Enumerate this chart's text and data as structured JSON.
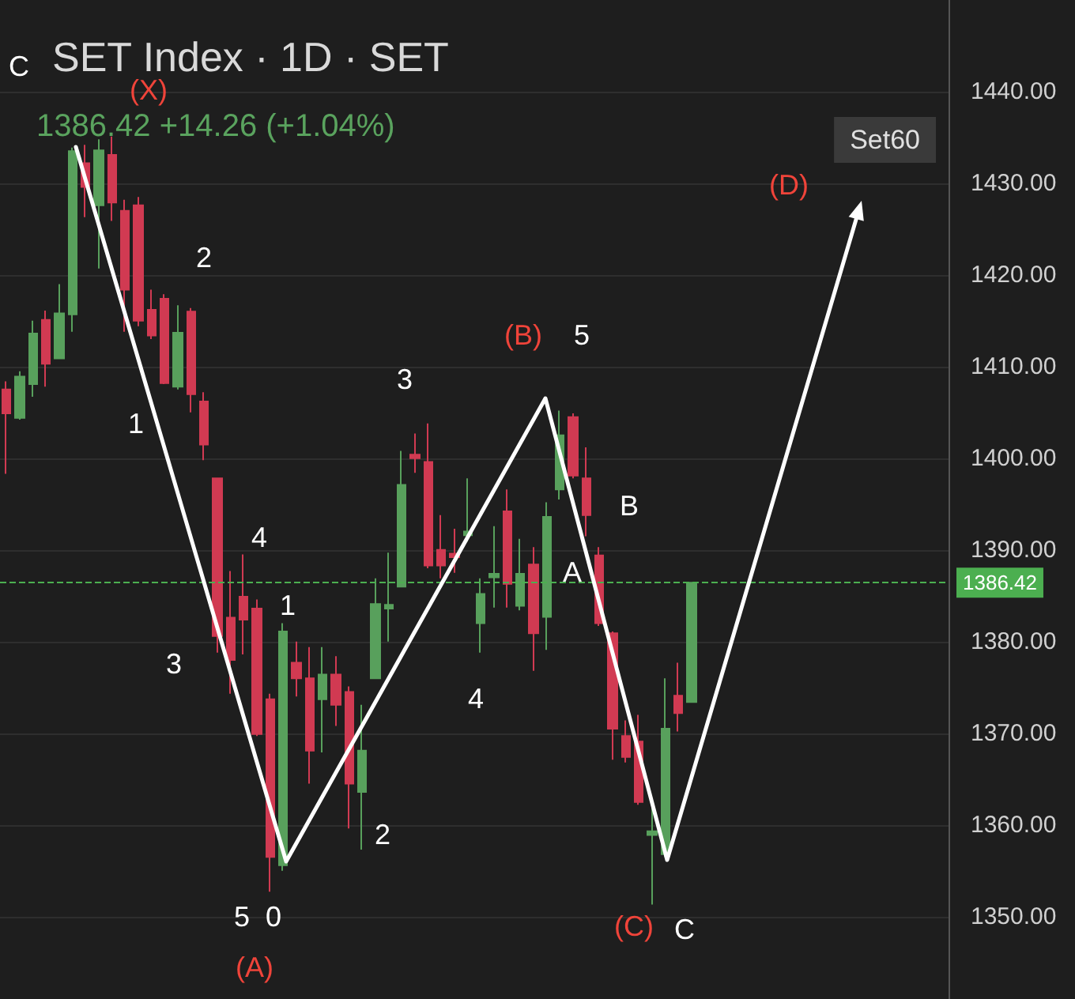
{
  "chart_data": {
    "type": "candlestick",
    "title": "SET Index · 1D · SET",
    "subtitle": "1386.42 +14.26 (+1.04%)",
    "categories": [
      null,
      null,
      null,
      null,
      null,
      null,
      null,
      null,
      null,
      null,
      null,
      null,
      null,
      null,
      null,
      null,
      null,
      null,
      null,
      null,
      null,
      null,
      null,
      null,
      null,
      null,
      null,
      null,
      null,
      null,
      null,
      null,
      null,
      null,
      null,
      null,
      null,
      null,
      null,
      null,
      null,
      null,
      null,
      null,
      null,
      null,
      null,
      null,
      null,
      null,
      null,
      null,
      null,
      null,
      null,
      null,
      null,
      null,
      null,
      null,
      null,
      null,
      null,
      null,
      null,
      null,
      null,
      null,
      null,
      null,
      null,
      null
    ],
    "ohlc": [
      [
        1407.5,
        1408.4,
        1398.3,
        1404.9
      ],
      [
        1404.4,
        1409.5,
        1404.2,
        1408.9
      ],
      [
        1408.1,
        1415.0,
        1406.7,
        1413.6
      ],
      [
        1415.1,
        1416.1,
        1407.8,
        1410.3
      ],
      [
        1410.9,
        1419.0,
        1410.9,
        1415.8
      ],
      [
        1415.7,
        1433.9,
        1413.8,
        1433.5
      ],
      [
        1432.2,
        1434.2,
        1426.3,
        1429.6
      ],
      [
        1427.6,
        1434.8,
        1420.7,
        1433.6
      ],
      [
        1433.1,
        1435.1,
        1425.9,
        1427.9
      ],
      [
        1427.0,
        1428.2,
        1413.8,
        1418.4
      ],
      [
        1427.6,
        1428.5,
        1414.4,
        1415.0
      ],
      [
        1416.2,
        1418.4,
        1413.0,
        1413.4
      ],
      [
        1417.4,
        1417.9,
        1408.1,
        1408.2
      ],
      [
        1407.8,
        1416.7,
        1407.5,
        1413.7
      ],
      [
        1416.0,
        1416.4,
        1405.0,
        1407.0
      ],
      [
        1406.2,
        1407.2,
        1399.8,
        1401.5
      ],
      [
        1397.8,
        1397.8,
        1378.8,
        1380.6
      ],
      [
        1382.6,
        1387.7,
        1374.3,
        1378.0
      ],
      [
        1384.9,
        1389.5,
        1378.6,
        1382.4
      ],
      [
        1383.6,
        1384.6,
        1369.7,
        1369.9
      ],
      [
        1373.7,
        1374.3,
        1352.7,
        1356.5
      ],
      [
        1355.6,
        1382.0,
        1355.0,
        1381.1
      ],
      [
        1377.7,
        1380.0,
        1374.0,
        1376.0
      ],
      [
        1376.0,
        1379.4,
        1364.5,
        1368.1
      ],
      [
        1373.7,
        1379.4,
        1367.9,
        1376.4
      ],
      [
        1376.4,
        1378.4,
        1370.8,
        1373.1
      ],
      [
        1374.5,
        1375.1,
        1359.6,
        1364.5
      ],
      [
        1363.6,
        1373.1,
        1357.3,
        1368.1
      ],
      [
        1376.0,
        1386.9,
        1376.0,
        1384.1
      ],
      [
        1383.6,
        1389.7,
        1380.0,
        1384.0
      ],
      [
        1386.0,
        1400.8,
        1386.0,
        1397.1
      ],
      [
        1400.4,
        1402.7,
        1398.4,
        1400.0
      ],
      [
        1399.6,
        1403.8,
        1388.0,
        1388.3
      ],
      [
        1390.0,
        1393.8,
        1386.9,
        1388.3
      ],
      [
        1389.6,
        1392.3,
        1387.5,
        1389.2
      ],
      [
        1391.6,
        1397.8,
        1390.9,
        1392.0
      ],
      [
        1382.0,
        1386.9,
        1378.8,
        1385.2
      ],
      [
        1387.0,
        1392.6,
        1383.7,
        1387.4
      ],
      [
        1394.2,
        1396.6,
        1383.7,
        1386.3
      ],
      [
        1383.9,
        1391.2,
        1383.4,
        1387.4
      ],
      [
        1388.4,
        1390.3,
        1376.8,
        1380.9
      ],
      [
        1382.7,
        1395.2,
        1379.1,
        1393.6
      ],
      [
        1396.6,
        1405.2,
        1395.5,
        1402.5
      ],
      [
        1404.5,
        1404.9,
        1397.8,
        1398.1
      ],
      [
        1397.8,
        1401.2,
        1391.5,
        1393.8
      ],
      [
        1389.4,
        1390.3,
        1381.7,
        1382.0
      ],
      [
        1380.9,
        1381.1,
        1367.1,
        1370.5
      ],
      [
        1369.7,
        1371.4,
        1366.8,
        1367.4
      ],
      [
        1369.1,
        1372.0,
        1362.2,
        1362.5
      ],
      [
        1358.9,
        1362.2,
        1351.3,
        1359.3
      ],
      [
        1356.8,
        1376.0,
        1356.5,
        1370.5
      ],
      [
        1374.1,
        1377.7,
        1370.2,
        1372.2
      ],
      [
        1373.4,
        1386.42,
        1373.4,
        1386.42
      ],
      null,
      null,
      null,
      null,
      null,
      null,
      null,
      null,
      null,
      null,
      null,
      null,
      null,
      null,
      null,
      null,
      null,
      null,
      null
    ],
    "colors": [
      "#d13a52",
      "#58a05c",
      "#58a05c",
      "#d13a52",
      "#58a05c",
      "#58a05c",
      "#d13a52",
      "#58a05c",
      "#d13a52",
      "#d13a52",
      "#d13a52",
      "#d13a52",
      "#d13a52",
      "#58a05c",
      "#d13a52",
      "#d13a52",
      "#d13a52",
      "#d13a52",
      "#d13a52",
      "#d13a52",
      "#d13a52",
      "#58a05c",
      "#d13a52",
      "#d13a52",
      "#58a05c",
      "#d13a52",
      "#d13a52",
      "#58a05c",
      "#58a05c",
      "#58a05c",
      "#58a05c",
      "#d13a52",
      "#d13a52",
      "#d13a52",
      "#d13a52",
      "#58a05c",
      "#58a05c",
      "#58a05c",
      "#d13a52",
      "#58a05c",
      "#d13a52",
      "#58a05c",
      "#58a05c",
      "#d13a52",
      "#d13a52",
      "#d13a52",
      "#d13a52",
      "#d13a52",
      "#d13a52",
      "#58a05c",
      "#58a05c",
      "#d13a52",
      "#58a05c",
      null,
      null,
      null,
      null,
      null,
      null,
      null,
      null,
      null,
      null,
      null,
      null,
      null,
      null,
      null,
      null,
      null,
      null,
      null
    ],
    "ylim": [
      1341,
      1450
    ],
    "yticks": [
      {
        "value": 1350,
        "label": "1350.00"
      },
      {
        "value": 1360,
        "label": "1360.00"
      },
      {
        "value": 1370,
        "label": "1370.00"
      },
      {
        "value": 1380,
        "label": "1380.00"
      },
      {
        "value": 1390,
        "label": "1390.00"
      },
      {
        "value": 1400,
        "label": "1400.00"
      },
      {
        "value": 1410,
        "label": "1410.00"
      },
      {
        "value": 1420,
        "label": "1420.00"
      },
      {
        "value": 1430,
        "label": "1430.00"
      },
      {
        "value": 1440,
        "label": "1440.00"
      }
    ],
    "tick_labels": "y",
    "grid": "y",
    "ref_lines": [
      {
        "axis": "y",
        "value": 1386.42,
        "label": "1386.42",
        "color": "#4caf50",
        "line_style": "dashed"
      }
    ],
    "annotations": [
      "C",
      "(X)",
      "2",
      "1",
      "4",
      "3",
      "1",
      "5",
      "0",
      "(A)",
      "2",
      "3",
      "4",
      "(B)",
      "5",
      "A",
      "B",
      "(C)",
      "C",
      "(D)",
      "Set60"
    ]
  }
}
